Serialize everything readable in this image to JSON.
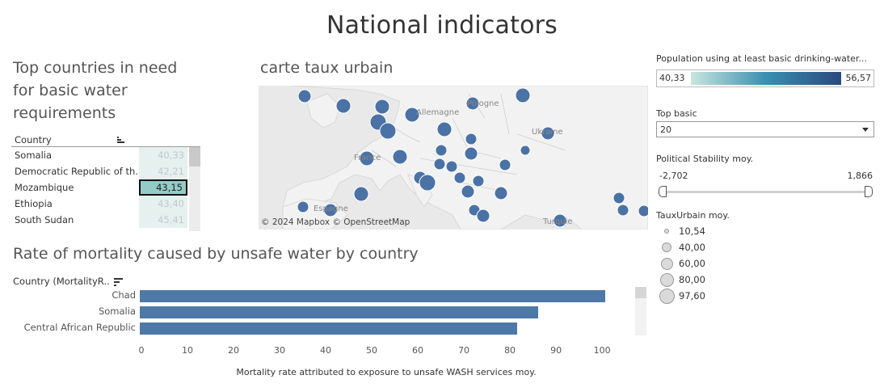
{
  "dashboard": {
    "title": "National indicators"
  },
  "top_countries": {
    "title": "Top countries in need for basic water requirements",
    "column_header": "Country",
    "rows": [
      {
        "country": "Somalia",
        "value": "40,33",
        "selected": false
      },
      {
        "country": "Democratic Republic of th..",
        "value": "42,21",
        "selected": false
      },
      {
        "country": "Mozambique",
        "value": "43,15",
        "selected": true
      },
      {
        "country": "Ethiopia",
        "value": "43,40",
        "selected": false
      },
      {
        "country": "South Sudan",
        "value": "45,41",
        "selected": false
      }
    ]
  },
  "map": {
    "title": "carte taux urbain",
    "attribution": "© 2024 Mapbox  © OpenStreetMap",
    "place_labels": [
      "Allemagne",
      "Pologne",
      "Ukraine",
      "France",
      "Espagne",
      "Turquie"
    ],
    "marker_color": "#4a72a5"
  },
  "mortality": {
    "title": "Rate of mortality caused by unsafe water by country",
    "column_header": "Country (MortalityR..",
    "chart_data": {
      "type": "bar",
      "orientation": "horizontal",
      "categories": [
        "Chad",
        "Somalia",
        "Central African Republic"
      ],
      "values": [
        101,
        86.5,
        82
      ],
      "xlabel": "Mortality rate attributed to exposure to unsafe WASH services moy.",
      "xticks": [
        "0",
        "10",
        "20",
        "30",
        "40",
        "50",
        "60",
        "70",
        "80",
        "90",
        "100"
      ],
      "xlim": [
        0,
        107
      ],
      "color": "#4e79a7"
    }
  },
  "filters": {
    "population_legend": {
      "title": "Population using at least basic drinking-water...",
      "min": "40,33",
      "max": "56,57"
    },
    "top_basic": {
      "title": "Top basic",
      "value": "20"
    },
    "political_stability": {
      "title": "Political Stability moy.",
      "min": "-2,702",
      "max": "1,866"
    },
    "taux_urbain": {
      "title": "TauxUrbain moy.",
      "items": [
        "10,54",
        "40,00",
        "60,00",
        "80,00",
        "97,60"
      ]
    }
  }
}
